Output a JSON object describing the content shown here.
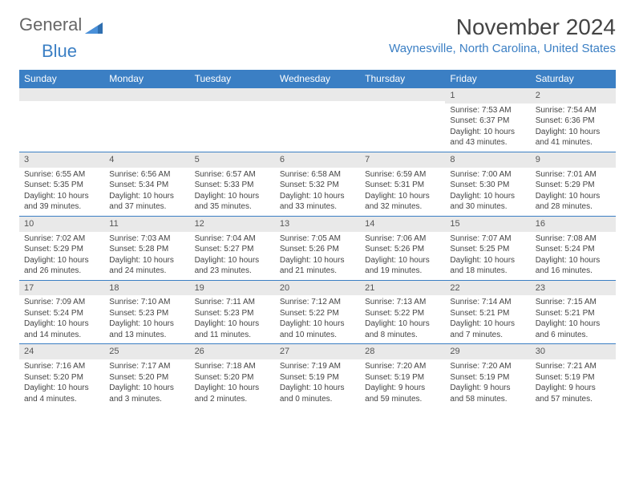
{
  "logo": {
    "general": "General",
    "blue": "Blue"
  },
  "header": {
    "month_title": "November 2024",
    "location": "Waynesville, North Carolina, United States"
  },
  "colors": {
    "brand_blue": "#3b7fc4",
    "header_text": "#ffffff",
    "daynum_bg": "#e9e9e9",
    "text": "#444444",
    "border": "#3b7fc4"
  },
  "day_names": [
    "Sunday",
    "Monday",
    "Tuesday",
    "Wednesday",
    "Thursday",
    "Friday",
    "Saturday"
  ],
  "weeks": [
    [
      {
        "day": "",
        "sunrise": "",
        "sunset": "",
        "daylight": ""
      },
      {
        "day": "",
        "sunrise": "",
        "sunset": "",
        "daylight": ""
      },
      {
        "day": "",
        "sunrise": "",
        "sunset": "",
        "daylight": ""
      },
      {
        "day": "",
        "sunrise": "",
        "sunset": "",
        "daylight": ""
      },
      {
        "day": "",
        "sunrise": "",
        "sunset": "",
        "daylight": ""
      },
      {
        "day": "1",
        "sunrise": "Sunrise: 7:53 AM",
        "sunset": "Sunset: 6:37 PM",
        "daylight": "Daylight: 10 hours and 43 minutes."
      },
      {
        "day": "2",
        "sunrise": "Sunrise: 7:54 AM",
        "sunset": "Sunset: 6:36 PM",
        "daylight": "Daylight: 10 hours and 41 minutes."
      }
    ],
    [
      {
        "day": "3",
        "sunrise": "Sunrise: 6:55 AM",
        "sunset": "Sunset: 5:35 PM",
        "daylight": "Daylight: 10 hours and 39 minutes."
      },
      {
        "day": "4",
        "sunrise": "Sunrise: 6:56 AM",
        "sunset": "Sunset: 5:34 PM",
        "daylight": "Daylight: 10 hours and 37 minutes."
      },
      {
        "day": "5",
        "sunrise": "Sunrise: 6:57 AM",
        "sunset": "Sunset: 5:33 PM",
        "daylight": "Daylight: 10 hours and 35 minutes."
      },
      {
        "day": "6",
        "sunrise": "Sunrise: 6:58 AM",
        "sunset": "Sunset: 5:32 PM",
        "daylight": "Daylight: 10 hours and 33 minutes."
      },
      {
        "day": "7",
        "sunrise": "Sunrise: 6:59 AM",
        "sunset": "Sunset: 5:31 PM",
        "daylight": "Daylight: 10 hours and 32 minutes."
      },
      {
        "day": "8",
        "sunrise": "Sunrise: 7:00 AM",
        "sunset": "Sunset: 5:30 PM",
        "daylight": "Daylight: 10 hours and 30 minutes."
      },
      {
        "day": "9",
        "sunrise": "Sunrise: 7:01 AM",
        "sunset": "Sunset: 5:29 PM",
        "daylight": "Daylight: 10 hours and 28 minutes."
      }
    ],
    [
      {
        "day": "10",
        "sunrise": "Sunrise: 7:02 AM",
        "sunset": "Sunset: 5:29 PM",
        "daylight": "Daylight: 10 hours and 26 minutes."
      },
      {
        "day": "11",
        "sunrise": "Sunrise: 7:03 AM",
        "sunset": "Sunset: 5:28 PM",
        "daylight": "Daylight: 10 hours and 24 minutes."
      },
      {
        "day": "12",
        "sunrise": "Sunrise: 7:04 AM",
        "sunset": "Sunset: 5:27 PM",
        "daylight": "Daylight: 10 hours and 23 minutes."
      },
      {
        "day": "13",
        "sunrise": "Sunrise: 7:05 AM",
        "sunset": "Sunset: 5:26 PM",
        "daylight": "Daylight: 10 hours and 21 minutes."
      },
      {
        "day": "14",
        "sunrise": "Sunrise: 7:06 AM",
        "sunset": "Sunset: 5:26 PM",
        "daylight": "Daylight: 10 hours and 19 minutes."
      },
      {
        "day": "15",
        "sunrise": "Sunrise: 7:07 AM",
        "sunset": "Sunset: 5:25 PM",
        "daylight": "Daylight: 10 hours and 18 minutes."
      },
      {
        "day": "16",
        "sunrise": "Sunrise: 7:08 AM",
        "sunset": "Sunset: 5:24 PM",
        "daylight": "Daylight: 10 hours and 16 minutes."
      }
    ],
    [
      {
        "day": "17",
        "sunrise": "Sunrise: 7:09 AM",
        "sunset": "Sunset: 5:24 PM",
        "daylight": "Daylight: 10 hours and 14 minutes."
      },
      {
        "day": "18",
        "sunrise": "Sunrise: 7:10 AM",
        "sunset": "Sunset: 5:23 PM",
        "daylight": "Daylight: 10 hours and 13 minutes."
      },
      {
        "day": "19",
        "sunrise": "Sunrise: 7:11 AM",
        "sunset": "Sunset: 5:23 PM",
        "daylight": "Daylight: 10 hours and 11 minutes."
      },
      {
        "day": "20",
        "sunrise": "Sunrise: 7:12 AM",
        "sunset": "Sunset: 5:22 PM",
        "daylight": "Daylight: 10 hours and 10 minutes."
      },
      {
        "day": "21",
        "sunrise": "Sunrise: 7:13 AM",
        "sunset": "Sunset: 5:22 PM",
        "daylight": "Daylight: 10 hours and 8 minutes."
      },
      {
        "day": "22",
        "sunrise": "Sunrise: 7:14 AM",
        "sunset": "Sunset: 5:21 PM",
        "daylight": "Daylight: 10 hours and 7 minutes."
      },
      {
        "day": "23",
        "sunrise": "Sunrise: 7:15 AM",
        "sunset": "Sunset: 5:21 PM",
        "daylight": "Daylight: 10 hours and 6 minutes."
      }
    ],
    [
      {
        "day": "24",
        "sunrise": "Sunrise: 7:16 AM",
        "sunset": "Sunset: 5:20 PM",
        "daylight": "Daylight: 10 hours and 4 minutes."
      },
      {
        "day": "25",
        "sunrise": "Sunrise: 7:17 AM",
        "sunset": "Sunset: 5:20 PM",
        "daylight": "Daylight: 10 hours and 3 minutes."
      },
      {
        "day": "26",
        "sunrise": "Sunrise: 7:18 AM",
        "sunset": "Sunset: 5:20 PM",
        "daylight": "Daylight: 10 hours and 2 minutes."
      },
      {
        "day": "27",
        "sunrise": "Sunrise: 7:19 AM",
        "sunset": "Sunset: 5:19 PM",
        "daylight": "Daylight: 10 hours and 0 minutes."
      },
      {
        "day": "28",
        "sunrise": "Sunrise: 7:20 AM",
        "sunset": "Sunset: 5:19 PM",
        "daylight": "Daylight: 9 hours and 59 minutes."
      },
      {
        "day": "29",
        "sunrise": "Sunrise: 7:20 AM",
        "sunset": "Sunset: 5:19 PM",
        "daylight": "Daylight: 9 hours and 58 minutes."
      },
      {
        "day": "30",
        "sunrise": "Sunrise: 7:21 AM",
        "sunset": "Sunset: 5:19 PM",
        "daylight": "Daylight: 9 hours and 57 minutes."
      }
    ]
  ]
}
